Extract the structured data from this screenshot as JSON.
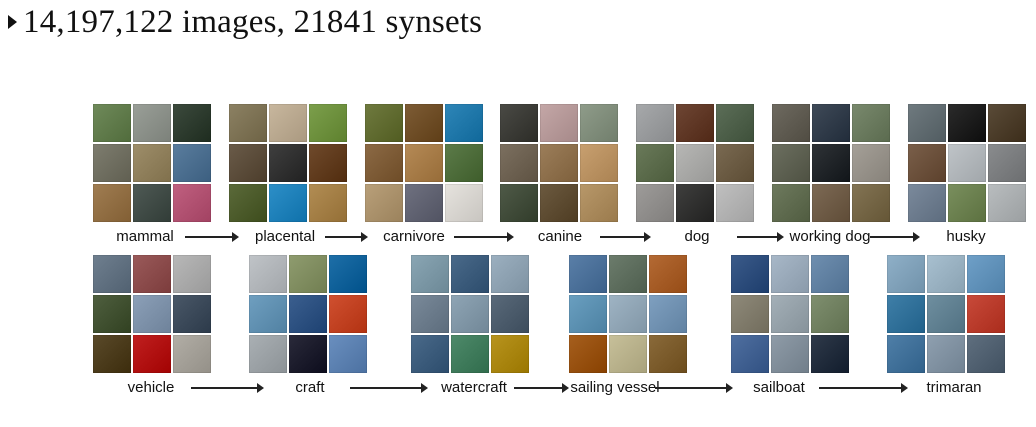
{
  "headline": {
    "text": "14,197,122 images, 21841 synsets",
    "bullet_icon": "triangle-bullet-icon"
  },
  "hierarchy_rows": [
    {
      "name": "row-1",
      "items": [
        {
          "label": "mammal",
          "colors": [
            "#6f8a5a",
            "#9a9f98",
            "#3c4a3d",
            "#7e7d6f",
            "#9e8e6a",
            "#5a7d9e",
            "#a07d52",
            "#4f5a55",
            "#c06080"
          ]
        },
        {
          "label": "placental",
          "colors": [
            "#8c8163",
            "#c8b79e",
            "#7c9f4c",
            "#6a5b49",
            "#3f3f3f",
            "#6f4a2c",
            "#5b6a3a",
            "#2d8fc8",
            "#b28d54"
          ]
        },
        {
          "label": "carnivore",
          "colors": [
            "#6f7a3f",
            "#7d5c35",
            "#2e86b8",
            "#8c6a45",
            "#b58a56",
            "#5c7b49",
            "#b9a07a",
            "#6f7180",
            "#e6e3de"
          ]
        },
        {
          "label": "canine",
          "colors": [
            "#4a4a45",
            "#c4a7a7",
            "#8f9c8a",
            "#7c7060",
            "#9c7e5a",
            "#c8a070",
            "#4f5a48",
            "#6c5a40",
            "#b8986a"
          ]
        },
        {
          "label": "dog",
          "colors": [
            "#a7a9ab",
            "#6e4634",
            "#5c6e58",
            "#6a7a5a",
            "#b7b7b5",
            "#7a6a52",
            "#9e9c9a",
            "#3f3f3e",
            "#c0c0c0"
          ]
        },
        {
          "label": "working dog",
          "colors": [
            "#6e6a60",
            "#3f4a58",
            "#79896d",
            "#6c6f60",
            "#2f3337",
            "#a5a098",
            "#6e7a5e",
            "#7d6a55",
            "#837454"
          ]
        },
        {
          "label": "husky",
          "colors": [
            "#6f7a7f",
            "#2b2b2b",
            "#5a4b38",
            "#7a5f4a",
            "#bfc4c8",
            "#8a8c8e",
            "#7b8a9c",
            "#7a8f5e",
            "#b9bdbf"
          ]
        }
      ]
    },
    {
      "name": "row-2",
      "items": [
        {
          "label": "vehicle",
          "colors": [
            "#6f7f8f",
            "#9a5a5a",
            "#b8b8b8",
            "#4f5f3f",
            "#8ca0b8",
            "#4a5868",
            "#5a4a2a",
            "#c02020",
            "#b2aea6"
          ]
        },
        {
          "label": "craft",
          "colors": [
            "#c0c4c8",
            "#8f9c6f",
            "#1e6fa8",
            "#6f9fc0",
            "#3b5f8f",
            "#d05030",
            "#aab0b4",
            "#2a2a3a",
            "#6a8fbf"
          ]
        },
        {
          "label": "watercraft",
          "colors": [
            "#8aa6b4",
            "#4a6a8a",
            "#9cb0c0",
            "#7a8a9a",
            "#8fa5b5",
            "#5a6a7a",
            "#4a6a8a",
            "#4e8a6a",
            "#b8941e"
          ]
        },
        {
          "label": "sailing vessel",
          "colors": [
            "#5a7fa8",
            "#6c7c6c",
            "#b46a34",
            "#6a9fc0",
            "#9fb4c4",
            "#7fa0c0",
            "#a65f1e",
            "#c7c09a",
            "#8a6a3a"
          ]
        },
        {
          "label": "sailboat",
          "colors": [
            "#3b5b8a",
            "#a8b8c8",
            "#6f8fb0",
            "#8f8a7a",
            "#a4b0b8",
            "#7f8f6f",
            "#4f6fa0",
            "#8f9ca8",
            "#2f3a4a"
          ]
        },
        {
          "label": "trimaran",
          "colors": [
            "#8fb0c8",
            "#a8c0d0",
            "#6fa0c8",
            "#3f7fa8",
            "#6f8fa0",
            "#c84a3a",
            "#4f7fa8",
            "#8fa0b0",
            "#5f6f7f"
          ]
        }
      ]
    }
  ]
}
